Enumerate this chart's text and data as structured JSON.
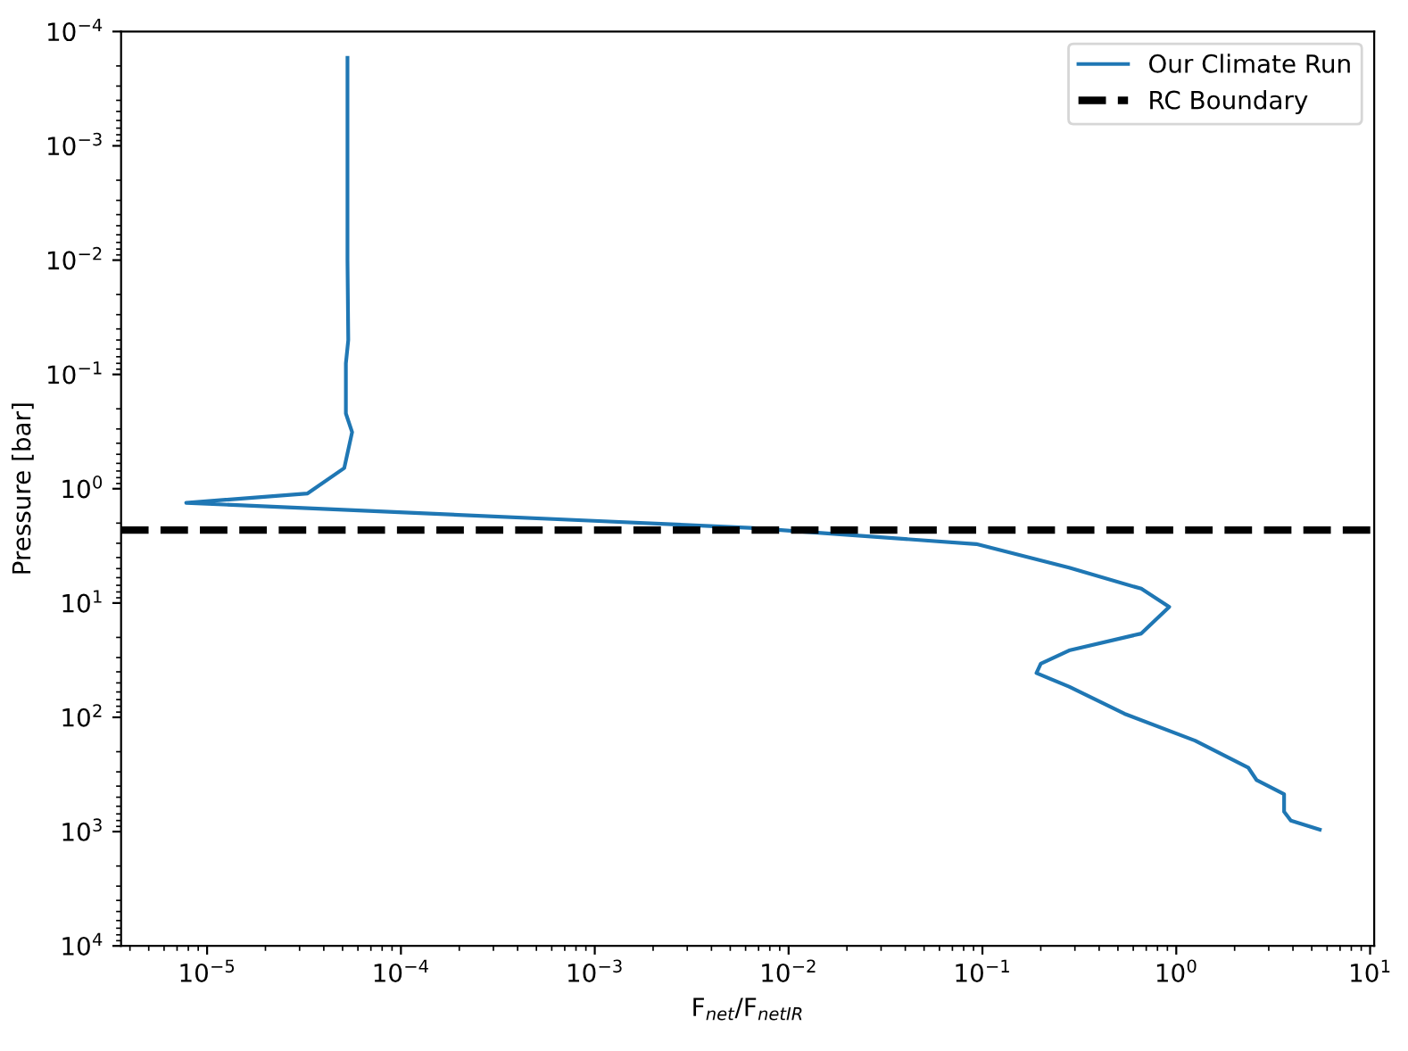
{
  "chart_data": {
    "type": "line",
    "xlabel": "F$_{net}$/F$_{netIR}$",
    "ylabel": "Pressure [bar]",
    "log": "xy",
    "legend": "top right",
    "grid": false,
    "xlim": [
      3.6e-06,
      10.5
    ],
    "ylim": [
      10000,
      0.0001
    ],
    "xticks": [
      {
        "value": 1e-05,
        "label": "10$^{−5}$"
      },
      {
        "value": 0.0001,
        "label": "10$^{−4}$"
      },
      {
        "value": 0.001,
        "label": "10$^{−3}$"
      },
      {
        "value": 0.01,
        "label": "10$^{−2}$"
      },
      {
        "value": 0.1,
        "label": "10$^{−1}$"
      },
      {
        "value": 1,
        "label": "10$^{0}$"
      },
      {
        "value": 10,
        "label": "10$^{1}$"
      }
    ],
    "yticks": [
      {
        "value": 10000,
        "label": "10$^{4}$"
      },
      {
        "value": 1000,
        "label": "10$^{3}$"
      },
      {
        "value": 100,
        "label": "10$^{2}$"
      },
      {
        "value": 10,
        "label": "10$^{1}$"
      },
      {
        "value": 1,
        "label": "10$^{0}$"
      },
      {
        "value": 0.1,
        "label": "10$^{−1}$"
      },
      {
        "value": 0.01,
        "label": "10$^{−2}$"
      },
      {
        "value": 0.001,
        "label": "10$^{−3}$"
      },
      {
        "value": 0.0001,
        "label": "10$^{−4}$"
      }
    ],
    "series": [
      {
        "name": "Our Climate Run",
        "color": "#1f77b4",
        "line_style": "solid",
        "x": [
          5.3e-05,
          5.3e-05,
          5.35e-05,
          5.2e-05,
          5.2e-05,
          5.6e-05,
          5.1e-05,
          3.3e-05,
          7.8e-06,
          0.00093,
          0.0063,
          0.093,
          0.28,
          0.66,
          0.92,
          0.66,
          0.28,
          0.2,
          0.19,
          0.28,
          0.54,
          1.25,
          2.35,
          2.6,
          3.6,
          3.6,
          3.9,
          5.5
        ],
        "values": [
          0.00017,
          0.01,
          0.05,
          0.08,
          0.22,
          0.32,
          0.66,
          1.1,
          1.33,
          1.9,
          2.2,
          3.05,
          4.9,
          7.5,
          10.8,
          18.5,
          26,
          34,
          41,
          54,
          93,
          160,
          275,
          355,
          470,
          670,
          800,
          960
        ]
      }
    ],
    "ref_lines": [
      {
        "axis": "y",
        "value": 2.3,
        "label": "RC Boundary",
        "color": "#000000",
        "line_style": "dashed"
      }
    ]
  }
}
